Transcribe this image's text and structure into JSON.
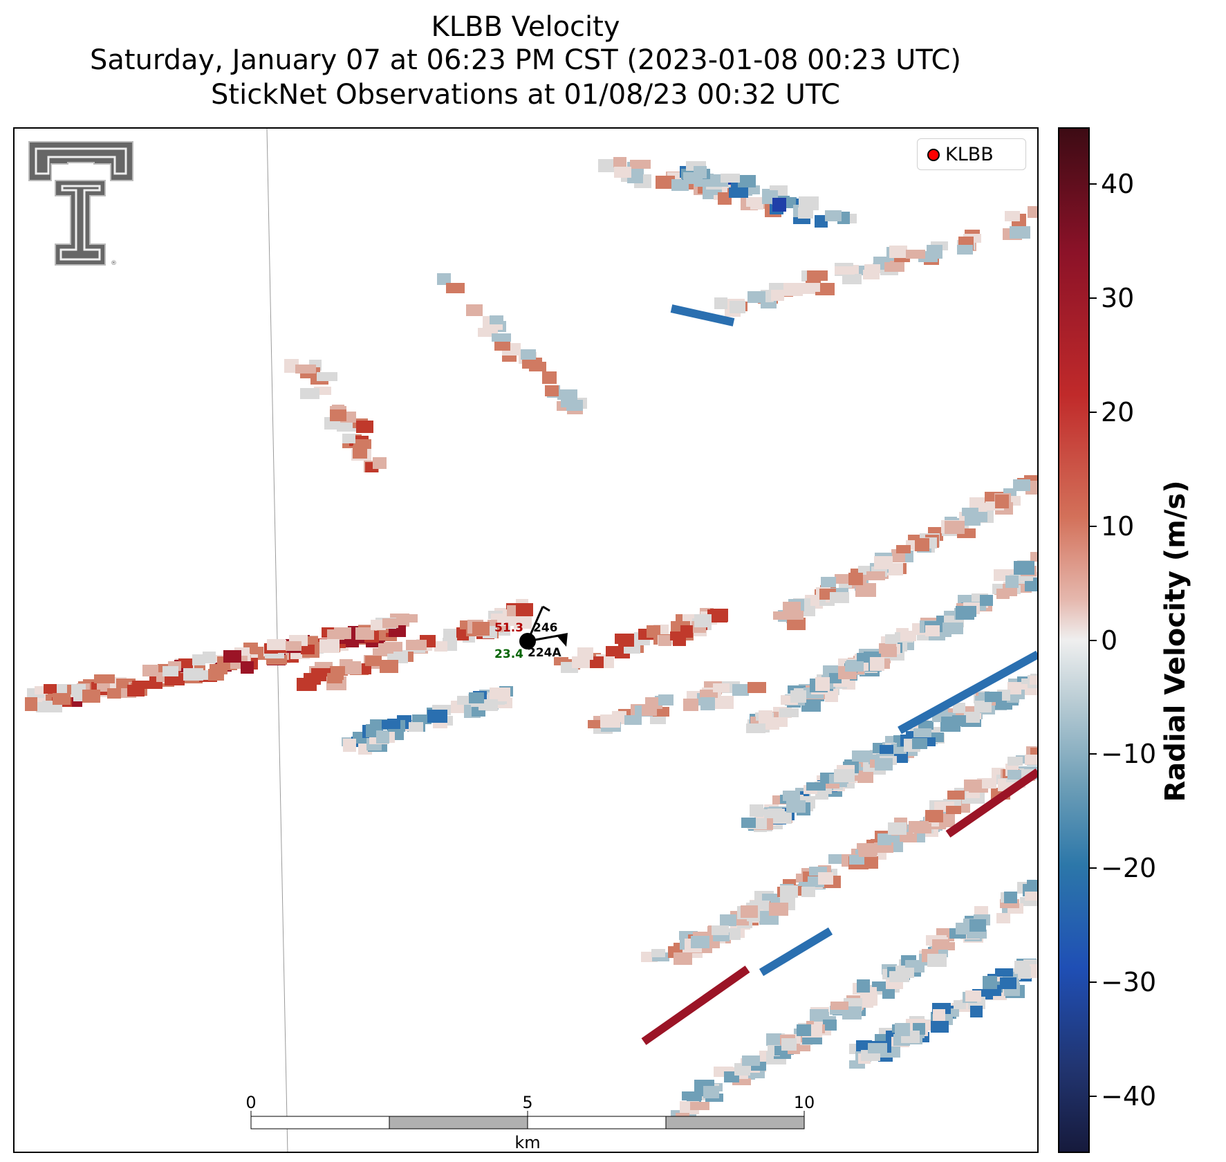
{
  "title": {
    "line1": "KLBB Velocity",
    "line2": "Saturday, January 07 at 06:23 PM CST (2023-01-08 00:23 UTC)",
    "line3": "StickNet Observations at 01/08/23 00:32 UTC"
  },
  "legend": {
    "label": "KLBB",
    "marker_color": "#ff0000"
  },
  "colorbar": {
    "label": "Radial Velocity (m/s)",
    "ticks": [
      "40",
      "30",
      "20",
      "10",
      "0",
      "−10",
      "−20",
      "−30",
      "−40"
    ],
    "range": [
      -45,
      45
    ]
  },
  "scalebar": {
    "ticks": [
      "0",
      "5",
      "10"
    ],
    "unit": "km"
  },
  "station": {
    "id": "224A",
    "temperature": "51.3",
    "dewpoint": "23.4",
    "pressure_code": "246",
    "temperature_color": "#b00000",
    "dewpoint_color": "#006400"
  },
  "logo": {
    "name": "texas-tech-double-t-logo",
    "mark": "®"
  }
}
